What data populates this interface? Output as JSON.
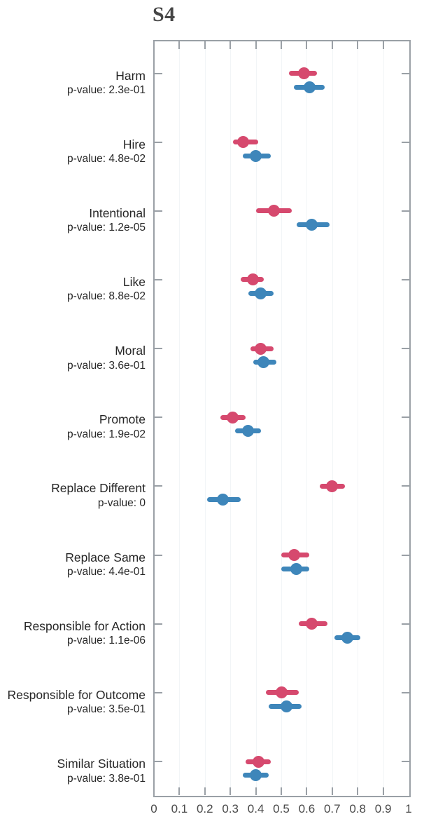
{
  "title": "S4",
  "colors": {
    "pink": "#d6496e",
    "blue": "#3e86ba",
    "axis": "#9aa0a6",
    "grid": "#f2f5f7",
    "label_text": "#262626",
    "tick_text": "#4a4a4a",
    "title_text": "#454545",
    "background": "#ffffff"
  },
  "chart_data": {
    "type": "scatter",
    "subtype": "dot_interval_forest_plot",
    "orientation": "horizontal",
    "title": "S4",
    "xlabel": "",
    "ylabel": "",
    "xlim": [
      0,
      1
    ],
    "x_tick_labels": [
      "0",
      "0.1",
      "0.2",
      "0.3",
      "0.4",
      "0.5",
      "0.6",
      "0.7",
      "0.8",
      "0.9",
      "1"
    ],
    "x_tick_values": [
      0,
      0.1,
      0.2,
      0.3,
      0.4,
      0.5,
      0.6,
      0.7,
      0.8,
      0.9,
      1
    ],
    "grid": "faint vertical at each x tick",
    "legend_position": "none",
    "series": [
      {
        "name": "pink-series",
        "color": "#d6496e"
      },
      {
        "name": "blue-series",
        "color": "#3e86ba"
      }
    ],
    "categories": [
      {
        "label": "Harm",
        "p_label": "p-value: 2.3e-01",
        "p_value": "2.3e-01",
        "pink": {
          "value": 0.59,
          "ci": [
            0.53,
            0.64
          ]
        },
        "blue": {
          "value": 0.61,
          "ci": [
            0.55,
            0.67
          ]
        }
      },
      {
        "label": "Hire",
        "p_label": "p-value: 4.8e-02",
        "p_value": "4.8e-02",
        "pink": {
          "value": 0.35,
          "ci": [
            0.31,
            0.41
          ]
        },
        "blue": {
          "value": 0.4,
          "ci": [
            0.35,
            0.46
          ]
        }
      },
      {
        "label": "Intentional",
        "p_label": "p-value: 1.2e-05",
        "p_value": "1.2e-05",
        "pink": {
          "value": 0.47,
          "ci": [
            0.4,
            0.54
          ]
        },
        "blue": {
          "value": 0.62,
          "ci": [
            0.56,
            0.69
          ]
        }
      },
      {
        "label": "Like",
        "p_label": "p-value: 8.8e-02",
        "p_value": "8.8e-02",
        "pink": {
          "value": 0.39,
          "ci": [
            0.34,
            0.43
          ]
        },
        "blue": {
          "value": 0.42,
          "ci": [
            0.37,
            0.47
          ]
        }
      },
      {
        "label": "Moral",
        "p_label": "p-value: 3.6e-01",
        "p_value": "3.6e-01",
        "pink": {
          "value": 0.42,
          "ci": [
            0.38,
            0.47
          ]
        },
        "blue": {
          "value": 0.43,
          "ci": [
            0.39,
            0.48
          ]
        }
      },
      {
        "label": "Promote",
        "p_label": "p-value: 1.9e-02",
        "p_value": "1.9e-02",
        "pink": {
          "value": 0.31,
          "ci": [
            0.26,
            0.36
          ]
        },
        "blue": {
          "value": 0.37,
          "ci": [
            0.32,
            0.42
          ]
        }
      },
      {
        "label": "Replace Different",
        "p_label": "p-value: 0",
        "p_value": "0",
        "pink": {
          "value": 0.7,
          "ci": [
            0.65,
            0.75
          ]
        },
        "blue": {
          "value": 0.27,
          "ci": [
            0.21,
            0.34
          ]
        }
      },
      {
        "label": "Replace Same",
        "p_label": "p-value: 4.4e-01",
        "p_value": "4.4e-01",
        "pink": {
          "value": 0.55,
          "ci": [
            0.5,
            0.61
          ]
        },
        "blue": {
          "value": 0.56,
          "ci": [
            0.5,
            0.61
          ]
        }
      },
      {
        "label": "Responsible for Action",
        "p_label": "p-value: 1.1e-06",
        "p_value": "1.1e-06",
        "pink": {
          "value": 0.62,
          "ci": [
            0.57,
            0.68
          ]
        },
        "blue": {
          "value": 0.76,
          "ci": [
            0.71,
            0.81
          ]
        }
      },
      {
        "label": "Responsible for Outcome",
        "p_label": "p-value: 3.5e-01",
        "p_value": "3.5e-01",
        "pink": {
          "value": 0.5,
          "ci": [
            0.44,
            0.57
          ]
        },
        "blue": {
          "value": 0.52,
          "ci": [
            0.45,
            0.58
          ]
        }
      },
      {
        "label": "Similar Situation",
        "p_label": "p-value: 3.8e-01",
        "p_value": "3.8e-01",
        "pink": {
          "value": 0.41,
          "ci": [
            0.36,
            0.46
          ]
        },
        "blue": {
          "value": 0.4,
          "ci": [
            0.35,
            0.45
          ]
        }
      }
    ]
  }
}
